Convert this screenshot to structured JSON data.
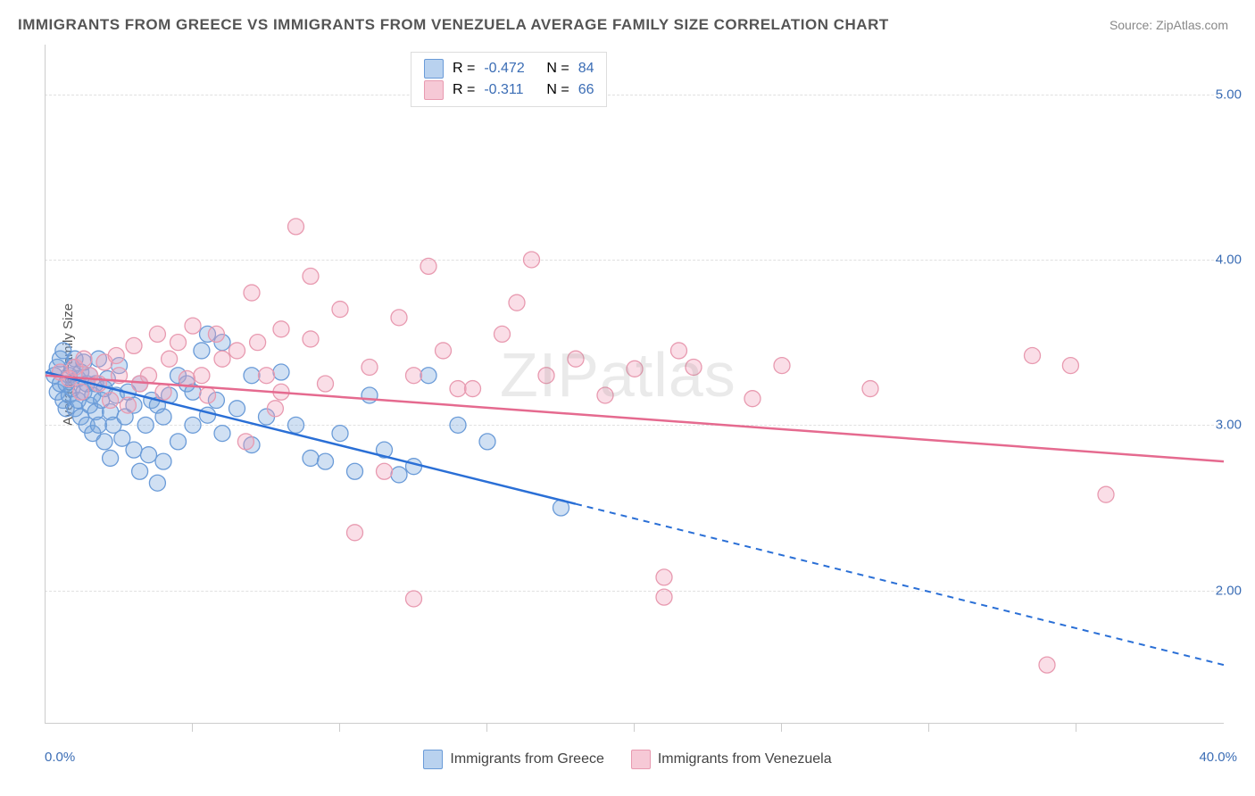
{
  "title": "IMMIGRANTS FROM GREECE VS IMMIGRANTS FROM VENEZUELA AVERAGE FAMILY SIZE CORRELATION CHART",
  "source": "Source: ZipAtlas.com",
  "watermark": "ZIPatlas",
  "chart": {
    "type": "scatter",
    "ylabel": "Average Family Size",
    "xlim": [
      0,
      40
    ],
    "ylim": [
      1.2,
      5.3
    ],
    "x_tick_labels": [
      "0.0%",
      "40.0%"
    ],
    "y_ticks": [
      2.0,
      3.0,
      4.0,
      5.0
    ],
    "y_tick_labels": [
      "2.00",
      "3.00",
      "4.00",
      "5.00"
    ],
    "x_minor_ticks": [
      5,
      10,
      15,
      20,
      25,
      30,
      35
    ],
    "grid_color": "#e0e0e0",
    "background_color": "#ffffff",
    "axis_color": "#cccccc",
    "tick_label_color": "#3b6db5",
    "series": [
      {
        "name": "Immigrants from Greece",
        "fill_color": "rgba(120,165,220,0.35)",
        "stroke_color": "#6a9bd8",
        "line_color": "#2a6fd6",
        "swatch_fill": "#b9d2ef",
        "swatch_border": "#6a9bd8",
        "R": "-0.472",
        "N": "84",
        "trend": {
          "x1": 0,
          "y1": 3.32,
          "x2": 40,
          "y2": 1.55,
          "solid_until_x": 18
        },
        "points": [
          [
            0.3,
            3.3
          ],
          [
            0.4,
            3.2
          ],
          [
            0.4,
            3.35
          ],
          [
            0.5,
            3.25
          ],
          [
            0.5,
            3.4
          ],
          [
            0.6,
            3.15
          ],
          [
            0.6,
            3.45
          ],
          [
            0.7,
            3.25
          ],
          [
            0.7,
            3.1
          ],
          [
            0.8,
            3.3
          ],
          [
            0.8,
            3.18
          ],
          [
            0.9,
            3.35
          ],
          [
            0.9,
            3.22
          ],
          [
            1.0,
            3.1
          ],
          [
            1.0,
            3.4
          ],
          [
            1.1,
            3.28
          ],
          [
            1.1,
            3.15
          ],
          [
            1.2,
            3.32
          ],
          [
            1.2,
            3.05
          ],
          [
            1.3,
            3.2
          ],
          [
            1.3,
            3.38
          ],
          [
            1.4,
            3.0
          ],
          [
            1.4,
            3.25
          ],
          [
            1.5,
            3.12
          ],
          [
            1.5,
            3.3
          ],
          [
            1.6,
            2.95
          ],
          [
            1.6,
            3.18
          ],
          [
            1.7,
            3.08
          ],
          [
            1.7,
            3.25
          ],
          [
            1.8,
            3.4
          ],
          [
            1.8,
            3.0
          ],
          [
            1.9,
            3.15
          ],
          [
            2.0,
            2.9
          ],
          [
            2.0,
            3.22
          ],
          [
            2.1,
            3.28
          ],
          [
            2.2,
            3.08
          ],
          [
            2.2,
            2.8
          ],
          [
            2.3,
            3.0
          ],
          [
            2.4,
            3.18
          ],
          [
            2.5,
            3.36
          ],
          [
            2.6,
            2.92
          ],
          [
            2.7,
            3.05
          ],
          [
            2.8,
            3.2
          ],
          [
            3.0,
            2.85
          ],
          [
            3.0,
            3.12
          ],
          [
            3.2,
            3.25
          ],
          [
            3.2,
            2.72
          ],
          [
            3.4,
            3.0
          ],
          [
            3.5,
            2.82
          ],
          [
            3.6,
            3.15
          ],
          [
            3.8,
            2.65
          ],
          [
            3.8,
            3.12
          ],
          [
            4.0,
            3.05
          ],
          [
            4.0,
            2.78
          ],
          [
            4.2,
            3.18
          ],
          [
            4.5,
            2.9
          ],
          [
            4.5,
            3.3
          ],
          [
            4.8,
            3.25
          ],
          [
            5.0,
            3.0
          ],
          [
            5.0,
            3.2
          ],
          [
            5.3,
            3.45
          ],
          [
            5.5,
            3.06
          ],
          [
            5.5,
            3.55
          ],
          [
            5.8,
            3.15
          ],
          [
            6.0,
            3.5
          ],
          [
            6.0,
            2.95
          ],
          [
            6.5,
            3.1
          ],
          [
            7.0,
            3.3
          ],
          [
            7.0,
            2.88
          ],
          [
            7.5,
            3.05
          ],
          [
            8.0,
            3.32
          ],
          [
            8.5,
            3.0
          ],
          [
            9.0,
            2.8
          ],
          [
            9.5,
            2.78
          ],
          [
            10.0,
            2.95
          ],
          [
            10.5,
            2.72
          ],
          [
            11.0,
            3.18
          ],
          [
            11.5,
            2.85
          ],
          [
            12.0,
            2.7
          ],
          [
            12.5,
            2.75
          ],
          [
            13.0,
            3.3
          ],
          [
            14.0,
            3.0
          ],
          [
            17.5,
            2.5
          ],
          [
            15.0,
            2.9
          ]
        ]
      },
      {
        "name": "Immigrants from Venezuela",
        "fill_color": "rgba(240,160,185,0.35)",
        "stroke_color": "#e89ab0",
        "line_color": "#e56a8f",
        "swatch_fill": "#f6c9d6",
        "swatch_border": "#e89ab0",
        "R": "-0.311",
        "N": "66",
        "trend": {
          "x1": 0,
          "y1": 3.3,
          "x2": 40,
          "y2": 2.78,
          "solid_until_x": 40
        },
        "points": [
          [
            0.5,
            3.32
          ],
          [
            0.8,
            3.28
          ],
          [
            1.0,
            3.35
          ],
          [
            1.2,
            3.2
          ],
          [
            1.3,
            3.4
          ],
          [
            1.5,
            3.3
          ],
          [
            1.8,
            3.25
          ],
          [
            2.0,
            3.38
          ],
          [
            2.2,
            3.15
          ],
          [
            2.4,
            3.42
          ],
          [
            2.5,
            3.3
          ],
          [
            2.8,
            3.12
          ],
          [
            3.0,
            3.48
          ],
          [
            3.2,
            3.25
          ],
          [
            3.5,
            3.3
          ],
          [
            3.8,
            3.55
          ],
          [
            4.0,
            3.2
          ],
          [
            4.2,
            3.4
          ],
          [
            4.5,
            3.5
          ],
          [
            4.8,
            3.28
          ],
          [
            5.0,
            3.6
          ],
          [
            5.3,
            3.3
          ],
          [
            5.5,
            3.18
          ],
          [
            5.8,
            3.55
          ],
          [
            6.0,
            3.4
          ],
          [
            6.5,
            3.45
          ],
          [
            7.0,
            3.8
          ],
          [
            7.2,
            3.5
          ],
          [
            7.5,
            3.3
          ],
          [
            8.0,
            3.58
          ],
          [
            8.0,
            3.2
          ],
          [
            8.5,
            4.2
          ],
          [
            9.0,
            3.52
          ],
          [
            9.0,
            3.9
          ],
          [
            9.5,
            3.25
          ],
          [
            10.0,
            3.7
          ],
          [
            10.5,
            2.35
          ],
          [
            11.0,
            3.35
          ],
          [
            11.5,
            2.72
          ],
          [
            12.0,
            3.65
          ],
          [
            12.5,
            3.3
          ],
          [
            12.5,
            1.95
          ],
          [
            13.0,
            3.96
          ],
          [
            13.5,
            3.45
          ],
          [
            14.0,
            3.22
          ],
          [
            14.5,
            3.22
          ],
          [
            15.5,
            3.55
          ],
          [
            16.0,
            3.74
          ],
          [
            16.5,
            4.0
          ],
          [
            17.0,
            3.3
          ],
          [
            18.0,
            3.4
          ],
          [
            19.0,
            3.18
          ],
          [
            20.0,
            3.34
          ],
          [
            21.0,
            2.08
          ],
          [
            21.0,
            1.96
          ],
          [
            21.5,
            3.45
          ],
          [
            22.0,
            3.35
          ],
          [
            24.0,
            3.16
          ],
          [
            25.0,
            3.36
          ],
          [
            28.0,
            3.22
          ],
          [
            33.5,
            3.42
          ],
          [
            34.8,
            3.36
          ],
          [
            36.0,
            2.58
          ],
          [
            34.0,
            1.55
          ],
          [
            7.8,
            3.1
          ],
          [
            6.8,
            2.9
          ]
        ]
      }
    ]
  },
  "legend_stats": {
    "label_R": "R =",
    "label_N": "N =",
    "value_color": "#3b6db5",
    "text_color": "#555"
  }
}
